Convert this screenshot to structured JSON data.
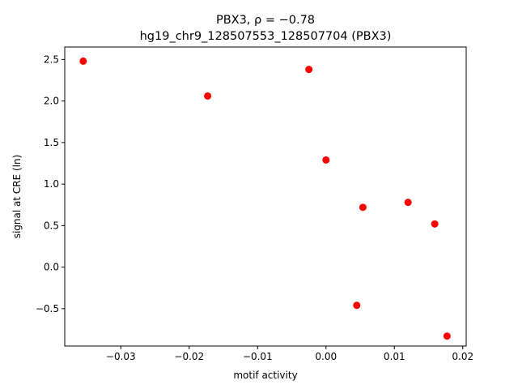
{
  "chart_data": {
    "type": "scatter",
    "title_line1": "PBX3, ρ = −0.78",
    "title_line2": "hg19_chr9_128507553_128507704 (PBX3)",
    "xlabel": "motif activity",
    "ylabel": "signal at CRE (ln)",
    "xlim": [
      -0.0382,
      0.0205
    ],
    "ylim": [
      -0.95,
      2.65
    ],
    "xticks": [
      -0.03,
      -0.02,
      -0.01,
      0.0,
      0.01,
      0.02
    ],
    "xtick_labels": [
      "−0.03",
      "−0.02",
      "−0.01",
      "0.00",
      "0.01",
      "0.02"
    ],
    "yticks": [
      -0.5,
      0.0,
      0.5,
      1.0,
      1.5,
      2.0,
      2.5
    ],
    "ytick_labels": [
      "−0.5",
      "0.0",
      "0.5",
      "1.0",
      "1.5",
      "2.0",
      "2.5"
    ],
    "grid": false,
    "marker_color": "#ff0000",
    "points": [
      {
        "x": -0.0355,
        "y": 2.48
      },
      {
        "x": -0.0173,
        "y": 2.06
      },
      {
        "x": -0.0025,
        "y": 2.38
      },
      {
        "x": 0.0,
        "y": 1.29
      },
      {
        "x": 0.0054,
        "y": 0.72
      },
      {
        "x": 0.012,
        "y": 0.78
      },
      {
        "x": 0.0159,
        "y": 0.52
      },
      {
        "x": 0.0045,
        "y": -0.46
      },
      {
        "x": 0.0177,
        "y": -0.83
      }
    ]
  }
}
